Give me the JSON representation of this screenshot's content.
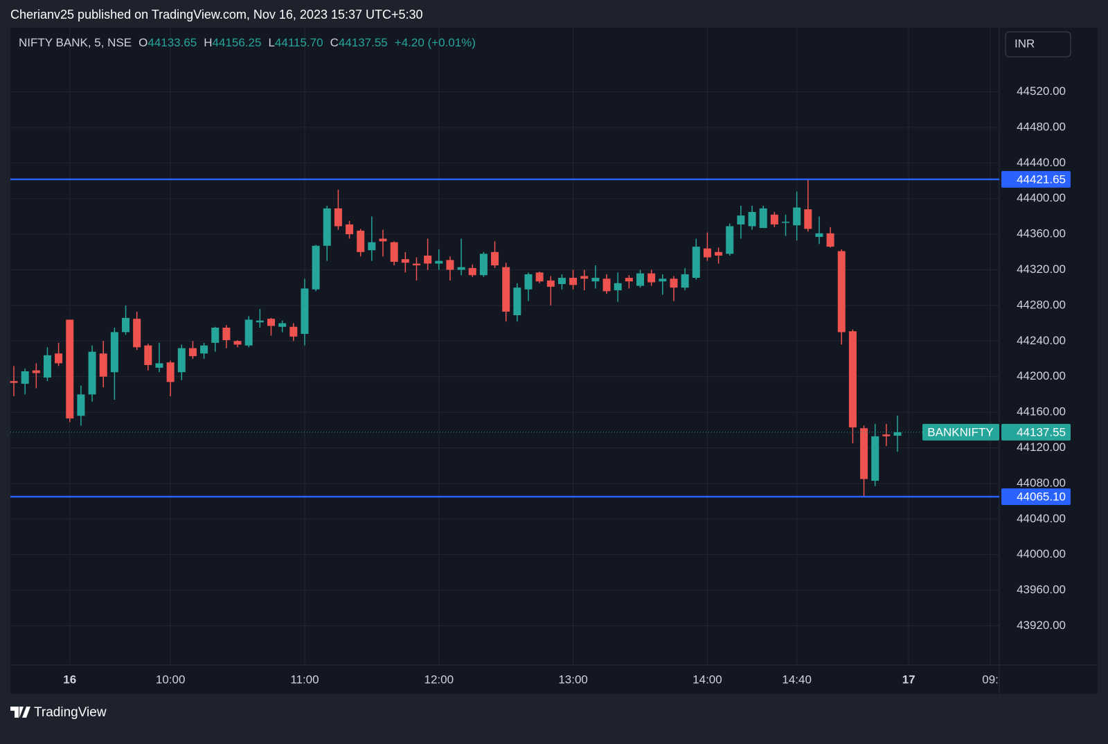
{
  "header": {
    "attribution": "Cherianv25 published on TradingView.com, Nov 16, 2023 15:37 UTC+5:30",
    "footer": "TradingView"
  },
  "chart_data": {
    "type": "candlestick",
    "title": "NIFTY BANK, 5, NSE",
    "ohlc_labels": [
      {
        "name": "O",
        "text": "44133.65"
      },
      {
        "name": "H",
        "text": "44156.25"
      },
      {
        "name": "L",
        "text": "44115.70"
      },
      {
        "name": "C",
        "text": "44137.55"
      }
    ],
    "change": "+4.20 (+0.01%)",
    "currency": "INR",
    "x": [
      0,
      1,
      2,
      3,
      4,
      5,
      6,
      7,
      8,
      9,
      10,
      11,
      12,
      13,
      14,
      15,
      16,
      17,
      18,
      19,
      20,
      21,
      22,
      23,
      24,
      25,
      26,
      27,
      28,
      29,
      30,
      31,
      32,
      33,
      34,
      35,
      36,
      37,
      38,
      39,
      40,
      41,
      42,
      43,
      44,
      45,
      46,
      47,
      48,
      49,
      50,
      51,
      52,
      53,
      54,
      55,
      56,
      57,
      58,
      59,
      60,
      61,
      62,
      63,
      64,
      65,
      66,
      67,
      68,
      69,
      70,
      71,
      72,
      73,
      74,
      75,
      76,
      77,
      78,
      79
    ],
    "open": [
      44195,
      44192,
      44207,
      44199,
      44226,
      44264,
      44156,
      44180,
      44226,
      44205,
      44250,
      44265,
      44235,
      44210,
      44216,
      44205,
      44232,
      44226,
      44238,
      44255,
      44240,
      44235,
      44261,
      44265,
      44256,
      44256,
      44248,
      44298,
      44347,
      44389,
      44371,
      44364,
      44342,
      44355,
      44351,
      44332,
      44327,
      44336,
      44327,
      44331,
      44320,
      44322,
      44314,
      44340,
      44323,
      44269,
      44298,
      44317,
      44308,
      44304,
      44311,
      44313,
      44307,
      44310,
      44297,
      44311,
      44302,
      44316,
      44307,
      44310,
      44300,
      44311,
      44344,
      44340,
      44338,
      44371,
      44369,
      44367,
      44382,
      44373,
      44370,
      44388,
      44357,
      44361,
      44341,
      44251,
      44142,
      44083,
      44135,
      44133.65
    ],
    "high": [
      44212,
      44209,
      44215,
      44233,
      44238,
      44264,
      44190,
      44235,
      44240,
      44255,
      44280,
      44273,
      44237,
      44238,
      44218,
      44236,
      44240,
      44238,
      44256,
      44258,
      44241,
      44268,
      44276,
      44266,
      44263,
      44260,
      44310,
      44348,
      44392,
      44410,
      44375,
      44366,
      44380,
      44365,
      44352,
      44340,
      44334,
      44355,
      44343,
      44335,
      44355,
      44326,
      44340,
      44352,
      44328,
      44305,
      44317,
      44318,
      44313,
      44315,
      44320,
      44320,
      44325,
      44315,
      44317,
      44314,
      44320,
      44320,
      44315,
      44313,
      44322,
      44355,
      44362,
      44345,
      44372,
      44392,
      44392,
      44392,
      44385,
      44382,
      44408,
      44421,
      44380,
      44368,
      44343,
      44253,
      44145,
      44147,
      44147,
      44156.25
    ],
    "low": [
      44178,
      44180,
      44187,
      44195,
      44212,
      44149,
      44145,
      44172,
      44188,
      44174,
      44247,
      44230,
      44207,
      44205,
      44178,
      44196,
      44220,
      44220,
      44228,
      44232,
      44233,
      44233,
      44255,
      44246,
      44250,
      44240,
      44235,
      44296,
      44330,
      44365,
      44355,
      44335,
      44330,
      44335,
      44325,
      44317,
      44308,
      44320,
      44320,
      44308,
      44314,
      44312,
      44312,
      44322,
      44262,
      44262,
      44285,
      44305,
      44280,
      44298,
      44298,
      44297,
      44299,
      44293,
      44284,
      44299,
      44300,
      44302,
      44292,
      44285,
      44297,
      44309,
      44330,
      44327,
      44336,
      44355,
      44365,
      44367,
      44368,
      44358,
      44353,
      44363,
      44349,
      44345,
      44236,
      44125,
      44065.1,
      44077,
      44122,
      44115.7
    ],
    "close": [
      44193,
      44206,
      44204,
      44224,
      44215,
      44153,
      44180,
      44228,
      44200,
      44250,
      44266,
      44233,
      44213,
      44215,
      44194,
      44232,
      44223,
      44235,
      44255,
      44241,
      44236,
      44264,
      44263,
      44257,
      44260,
      44245,
      44299,
      44347,
      44389,
      44369,
      44360,
      44340,
      44351,
      44352,
      44329,
      44328,
      44325,
      44327,
      44330,
      44320,
      44323,
      44314,
      44338,
      44325,
      44273,
      44300,
      44315,
      44307,
      44301,
      44311,
      44303,
      44310,
      44311,
      44296,
      44305,
      44307,
      44316,
      44306,
      44310,
      44300,
      44315,
      44346,
      44334,
      44336,
      44369,
      44381,
      44385,
      44389,
      44371,
      44374,
      44390,
      44366,
      44361,
      44346,
      44250,
      44143,
      44085,
      44133,
      44133,
      44137.55
    ],
    "up_color": "#26a69a",
    "down_color": "#ef5350",
    "xlim": [
      -0.31,
      88.1
    ],
    "ylim": [
      43876,
      44592
    ],
    "xticks": [
      {
        "value": 5,
        "label": "16"
      },
      {
        "value": 14,
        "label": "10:00"
      },
      {
        "value": 26,
        "label": "11:00"
      },
      {
        "value": 38,
        "label": "12:00"
      },
      {
        "value": 50,
        "label": "13:00"
      },
      {
        "value": 62,
        "label": "14:00"
      },
      {
        "value": 70,
        "label": "14:40"
      },
      {
        "value": 80,
        "label": "17"
      },
      {
        "value": 87.3,
        "label": "09:"
      }
    ],
    "yticks": [
      {
        "value": 43920,
        "label": "43920.00"
      },
      {
        "value": 43960,
        "label": "43960.00"
      },
      {
        "value": 44000,
        "label": "44000.00"
      },
      {
        "value": 44040,
        "label": "44040.00"
      },
      {
        "value": 44080,
        "label": "44080.00"
      },
      {
        "value": 44120,
        "label": "44120.00"
      },
      {
        "value": 44160,
        "label": "44160.00"
      },
      {
        "value": 44200,
        "label": "44200.00"
      },
      {
        "value": 44240,
        "label": "44240.00"
      },
      {
        "value": 44280,
        "label": "44280.00"
      },
      {
        "value": 44320,
        "label": "44320.00"
      },
      {
        "value": 44360,
        "label": "44360.00"
      },
      {
        "value": 44400,
        "label": "44400.00"
      },
      {
        "value": 44440,
        "label": "44440.00"
      },
      {
        "value": 44480,
        "label": "44480.00"
      },
      {
        "value": 44520,
        "label": "44520.00"
      }
    ],
    "lines": [
      {
        "value": 44421.65,
        "label": "44421.65",
        "color": "#2962ff"
      },
      {
        "value": 44065.1,
        "label": "44065.10",
        "color": "#2962ff"
      }
    ],
    "last_price": {
      "value": 44137.55,
      "label": "44137.55",
      "symbol": "BANKNIFTY"
    },
    "grid": true
  }
}
